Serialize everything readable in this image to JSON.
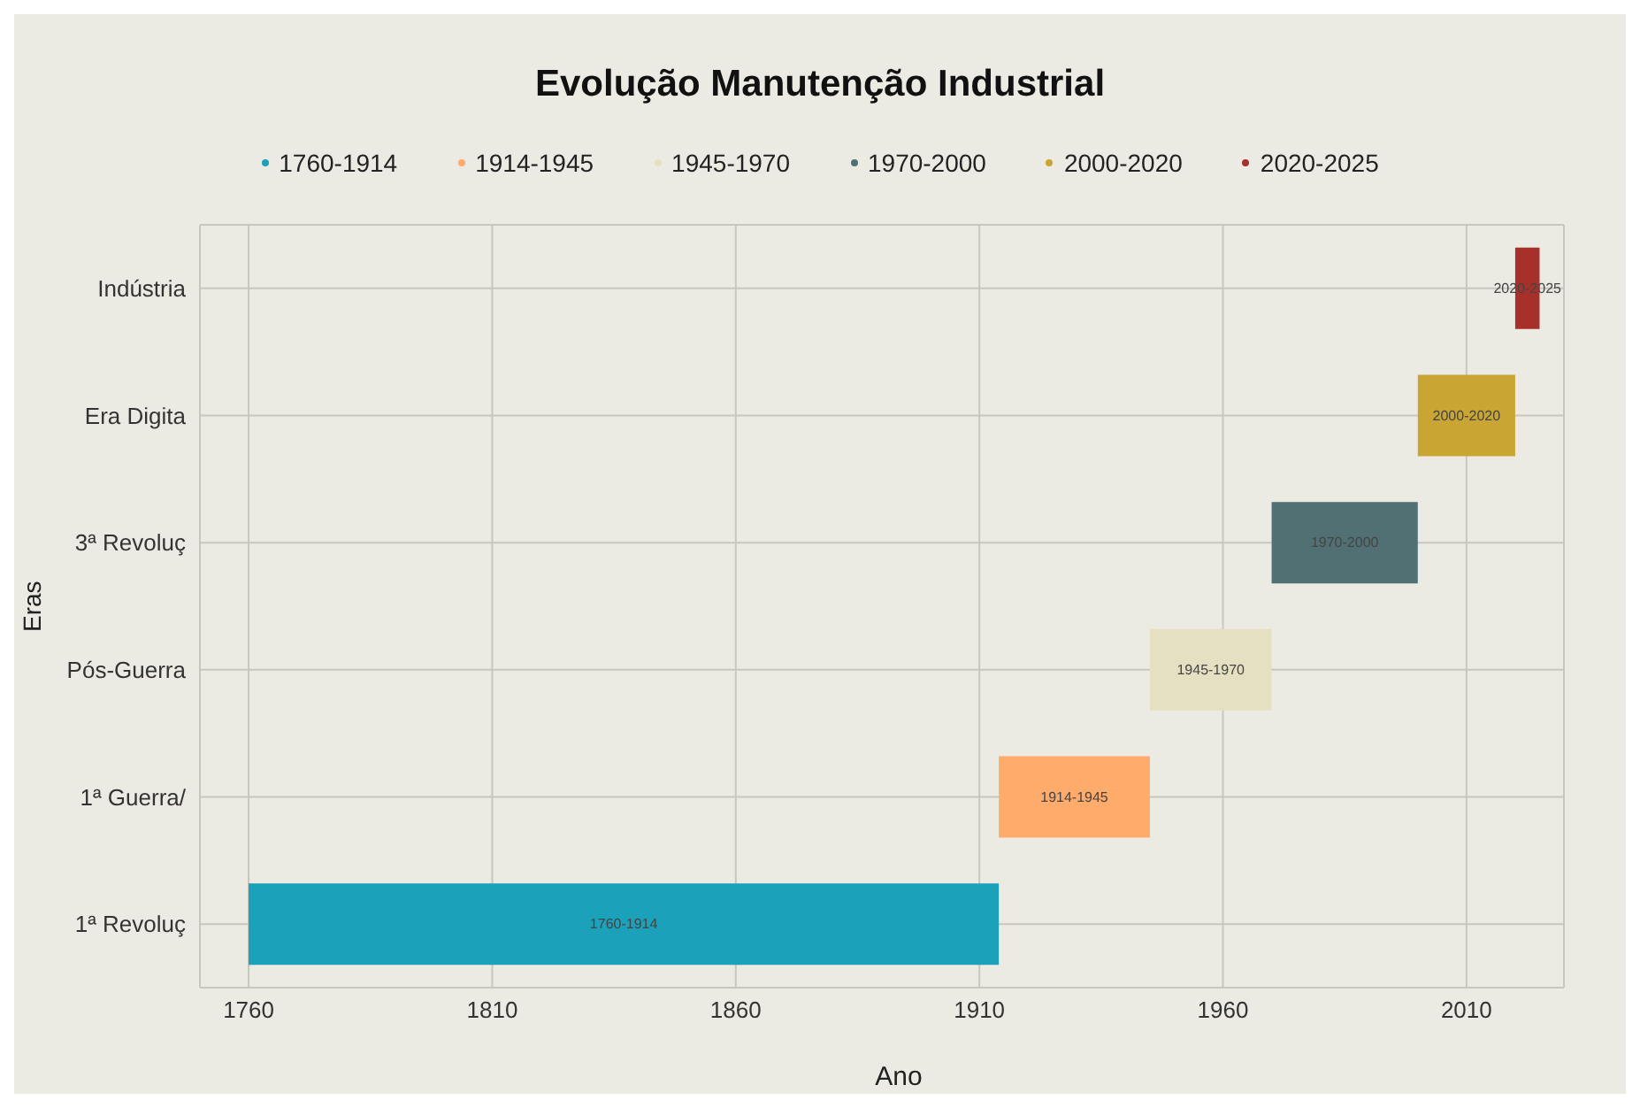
{
  "chart_data": {
    "type": "bar",
    "orientation": "horizontal",
    "title": "Evolução Manutenção Industrial",
    "xlabel": "Ano",
    "ylabel": "Eras",
    "categories": [
      "Indústria",
      "Era Digita",
      "3ª Revoluç",
      "Pós-Guerra",
      "1ª Guerra/",
      "1ª Revoluç"
    ],
    "series": [
      {
        "name": "1760-1914",
        "color": "#1ba1b9",
        "values": [
          null,
          null,
          null,
          null,
          null,
          154
        ],
        "base": [
          null,
          null,
          null,
          null,
          null,
          1760
        ],
        "value_labels": [
          null,
          null,
          null,
          null,
          null,
          "1760-1914"
        ]
      },
      {
        "name": "1914-1945",
        "color": "#ffab6b",
        "values": [
          null,
          null,
          null,
          null,
          31,
          null
        ],
        "base": [
          null,
          null,
          null,
          null,
          1914,
          null
        ],
        "value_labels": [
          null,
          null,
          null,
          null,
          "1914-1945",
          null
        ]
      },
      {
        "name": "1945-1970",
        "color": "#e6e0c2",
        "values": [
          null,
          null,
          null,
          25,
          null,
          null
        ],
        "base": [
          null,
          null,
          null,
          1945,
          null,
          null
        ],
        "value_labels": [
          null,
          null,
          null,
          "1945-1970",
          null,
          null
        ]
      },
      {
        "name": "1970-2000",
        "color": "#507073",
        "values": [
          null,
          null,
          30,
          null,
          null,
          null
        ],
        "base": [
          null,
          null,
          1970,
          null,
          null,
          null
        ],
        "value_labels": [
          null,
          null,
          "1970-2000",
          null,
          null,
          null
        ]
      },
      {
        "name": "2000-2020",
        "color": "#c9a634",
        "values": [
          null,
          20,
          null,
          null,
          null,
          null
        ],
        "base": [
          null,
          2000,
          null,
          null,
          null,
          null
        ],
        "value_labels": [
          null,
          "2000-2020",
          null,
          null,
          null,
          null
        ]
      },
      {
        "name": "2020-2025",
        "color": "#a8302b",
        "values": [
          5,
          null,
          null,
          null,
          null,
          null
        ],
        "base": [
          2020,
          null,
          null,
          null,
          null,
          null
        ],
        "value_labels": [
          "2020-2025",
          null,
          null,
          null,
          null,
          null
        ]
      }
    ],
    "xlim": [
      1750,
      2030
    ],
    "xticks": [
      1760,
      1810,
      1860,
      1910,
      1960,
      2010
    ],
    "grid": true,
    "legend": "top"
  }
}
